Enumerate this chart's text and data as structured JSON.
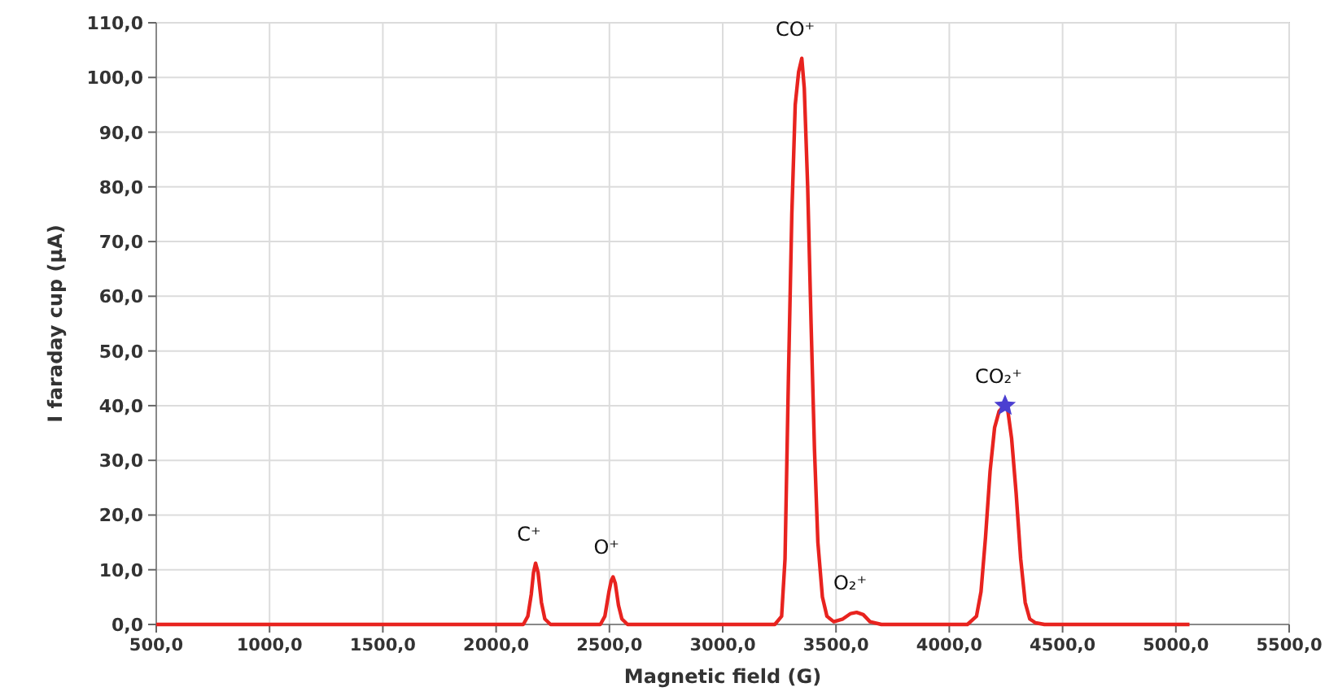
{
  "chart_data": {
    "type": "line",
    "xlabel": "Magnetic field (G)",
    "ylabel": "I faraday cup (µA)",
    "xlim": [
      500,
      5500
    ],
    "ylim": [
      0,
      110
    ],
    "xticks": [
      {
        "value": 500,
        "label": "500,0"
      },
      {
        "value": 1000,
        "label": "1000,0"
      },
      {
        "value": 1500,
        "label": "1500,0"
      },
      {
        "value": 2000,
        "label": "2000,0"
      },
      {
        "value": 2500,
        "label": "2500,0"
      },
      {
        "value": 3000,
        "label": "3000,0"
      },
      {
        "value": 3500,
        "label": "3500,0"
      },
      {
        "value": 4000,
        "label": "4000,0"
      },
      {
        "value": 4500,
        "label": "4500,0"
      },
      {
        "value": 5000,
        "label": "5000,0"
      },
      {
        "value": 5500,
        "label": "5500,0"
      }
    ],
    "yticks": [
      {
        "value": 0,
        "label": "0,0"
      },
      {
        "value": 10,
        "label": "10,0"
      },
      {
        "value": 20,
        "label": "20,0"
      },
      {
        "value": 30,
        "label": "30,0"
      },
      {
        "value": 40,
        "label": "40,0"
      },
      {
        "value": 50,
        "label": "50,0"
      },
      {
        "value": 60,
        "label": "60,0"
      },
      {
        "value": 70,
        "label": "70,0"
      },
      {
        "value": 80,
        "label": "80,0"
      },
      {
        "value": 90,
        "label": "90,0"
      },
      {
        "value": 100,
        "label": "100,0"
      },
      {
        "value": 110,
        "label": "110,0"
      }
    ],
    "grid": true,
    "series": [
      {
        "color": "#e8231f",
        "x": [
          500,
          2120,
          2140,
          2155,
          2165,
          2174,
          2185,
          2200,
          2215,
          2240,
          2460,
          2480,
          2498,
          2508,
          2516,
          2526,
          2540,
          2555,
          2580,
          3230,
          3260,
          3275,
          3290,
          3305,
          3320,
          3335,
          3349,
          3360,
          3375,
          3390,
          3405,
          3420,
          3440,
          3460,
          3490,
          3530,
          3565,
          3591,
          3620,
          3650,
          3700,
          4080,
          4120,
          4140,
          4160,
          4180,
          4200,
          4220,
          4235,
          4246,
          4258,
          4275,
          4295,
          4315,
          4335,
          4355,
          4380,
          4420,
          5060
        ],
        "values": [
          0,
          0,
          1.5,
          5.5,
          9.5,
          11.2,
          9.5,
          4,
          1,
          0,
          0,
          1.5,
          6,
          8,
          8.7,
          7.5,
          3.5,
          1,
          0,
          0,
          1.5,
          12,
          45,
          75,
          95,
          101,
          103.5,
          98,
          80,
          55,
          32,
          15,
          5,
          1.5,
          0.5,
          1,
          2,
          2.2,
          1.8,
          0.5,
          0,
          0,
          1.5,
          6,
          16,
          28,
          36,
          39,
          39.7,
          40,
          39.2,
          34,
          24,
          12,
          4,
          1,
          0.3,
          0,
          0
        ]
      },
      {
        "type": "scatter",
        "marker": "star",
        "color": "#4b3fd1",
        "x": [
          4246
        ],
        "values": [
          40
        ]
      }
    ],
    "annotations": [
      {
        "text": "C⁺",
        "x": 2174,
        "y": 11.2
      },
      {
        "text": "O⁺",
        "x": 2516,
        "y": 8.7
      },
      {
        "text": "CO⁺",
        "x": 3349,
        "y": 103.5
      },
      {
        "text": "O₂⁺",
        "x": 3591,
        "y": 2.2
      },
      {
        "text": "CO₂⁺",
        "x": 4246,
        "y": 40
      }
    ]
  }
}
